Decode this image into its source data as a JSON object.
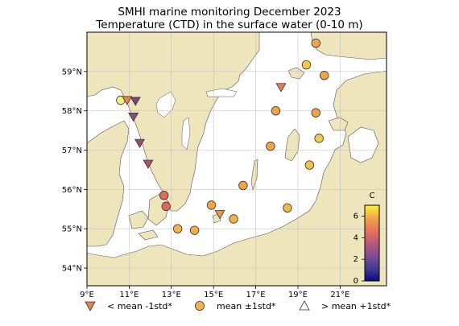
{
  "title": "SMHI marine monitoring December 2023",
  "subtitle": "Temperature (CTD) in the surface water (0-10 m)",
  "map": {
    "lon_range": [
      9,
      23.2
    ],
    "lat_range": [
      53.55,
      60.0
    ],
    "x_ticks": [
      "9°E",
      "11°E",
      "13°E",
      "15°E",
      "17°E",
      "19°E",
      "21°E"
    ],
    "x_tick_values": [
      9,
      11,
      13,
      15,
      17,
      19,
      21
    ],
    "y_ticks": [
      "54°N",
      "55°N",
      "56°N",
      "57°N",
      "58°N",
      "59°N"
    ],
    "y_tick_values": [
      54,
      55,
      56,
      57,
      58,
      59
    ],
    "land_color": "#efe5bd",
    "sea_color": "#ffffff",
    "grid": true
  },
  "colorbar": {
    "label": "C",
    "min": 0,
    "max": 7,
    "ticks": [
      "0",
      "2",
      "4",
      "6"
    ],
    "tick_values": [
      0,
      2,
      4,
      6
    ],
    "colormap": "plasma-like"
  },
  "stations": [
    {
      "lon": 10.6,
      "lat": 58.27,
      "marker": "circle",
      "color": "#eef27a"
    },
    {
      "lon": 10.9,
      "lat": 58.27,
      "marker": "down",
      "color": "#e8834f"
    },
    {
      "lon": 11.3,
      "lat": 58.25,
      "marker": "down",
      "color": "#7a4a6c"
    },
    {
      "lon": 11.2,
      "lat": 57.85,
      "marker": "down",
      "color": "#8a4e6e"
    },
    {
      "lon": 11.5,
      "lat": 57.18,
      "marker": "down",
      "color": "#94506e"
    },
    {
      "lon": 11.9,
      "lat": 56.65,
      "marker": "down",
      "color": "#a8546d"
    },
    {
      "lon": 12.65,
      "lat": 55.85,
      "marker": "circle",
      "color": "#df6c5c"
    },
    {
      "lon": 12.75,
      "lat": 55.57,
      "marker": "circle",
      "color": "#de6a58"
    },
    {
      "lon": 13.3,
      "lat": 55.0,
      "marker": "circle",
      "color": "#f1b14c"
    },
    {
      "lon": 14.1,
      "lat": 54.96,
      "marker": "circle",
      "color": "#f1b14c"
    },
    {
      "lon": 14.9,
      "lat": 55.6,
      "marker": "circle",
      "color": "#f1a34a"
    },
    {
      "lon": 15.3,
      "lat": 55.37,
      "marker": "down",
      "color": "#e9974a"
    },
    {
      "lon": 15.95,
      "lat": 55.25,
      "marker": "circle",
      "color": "#f1b14c"
    },
    {
      "lon": 16.4,
      "lat": 56.1,
      "marker": "circle",
      "color": "#f1a34a"
    },
    {
      "lon": 17.7,
      "lat": 57.1,
      "marker": "circle",
      "color": "#f1a34a"
    },
    {
      "lon": 17.95,
      "lat": 58.0,
      "marker": "circle",
      "color": "#f1a34a"
    },
    {
      "lon": 18.2,
      "lat": 58.6,
      "marker": "down",
      "color": "#e67b56"
    },
    {
      "lon": 18.5,
      "lat": 55.53,
      "marker": "circle",
      "color": "#f0b64a"
    },
    {
      "lon": 19.4,
      "lat": 59.17,
      "marker": "circle",
      "color": "#f3c84c"
    },
    {
      "lon": 19.55,
      "lat": 56.62,
      "marker": "circle",
      "color": "#f3c24c"
    },
    {
      "lon": 19.85,
      "lat": 59.72,
      "marker": "circle",
      "color": "#f1a34a"
    },
    {
      "lon": 19.85,
      "lat": 57.95,
      "marker": "circle",
      "color": "#f1a34a"
    },
    {
      "lon": 20.0,
      "lat": 57.3,
      "marker": "circle",
      "color": "#f3c84c"
    },
    {
      "lon": 20.25,
      "lat": 58.9,
      "marker": "circle",
      "color": "#f1a34a"
    }
  ],
  "legend": {
    "below": {
      "label": "< mean -1std*",
      "color": "#e8834f"
    },
    "mean": {
      "label": "mean ±1std*",
      "color": "#f1b14c"
    },
    "above": {
      "label": "> mean +1std*",
      "color": "#ffffff"
    }
  }
}
